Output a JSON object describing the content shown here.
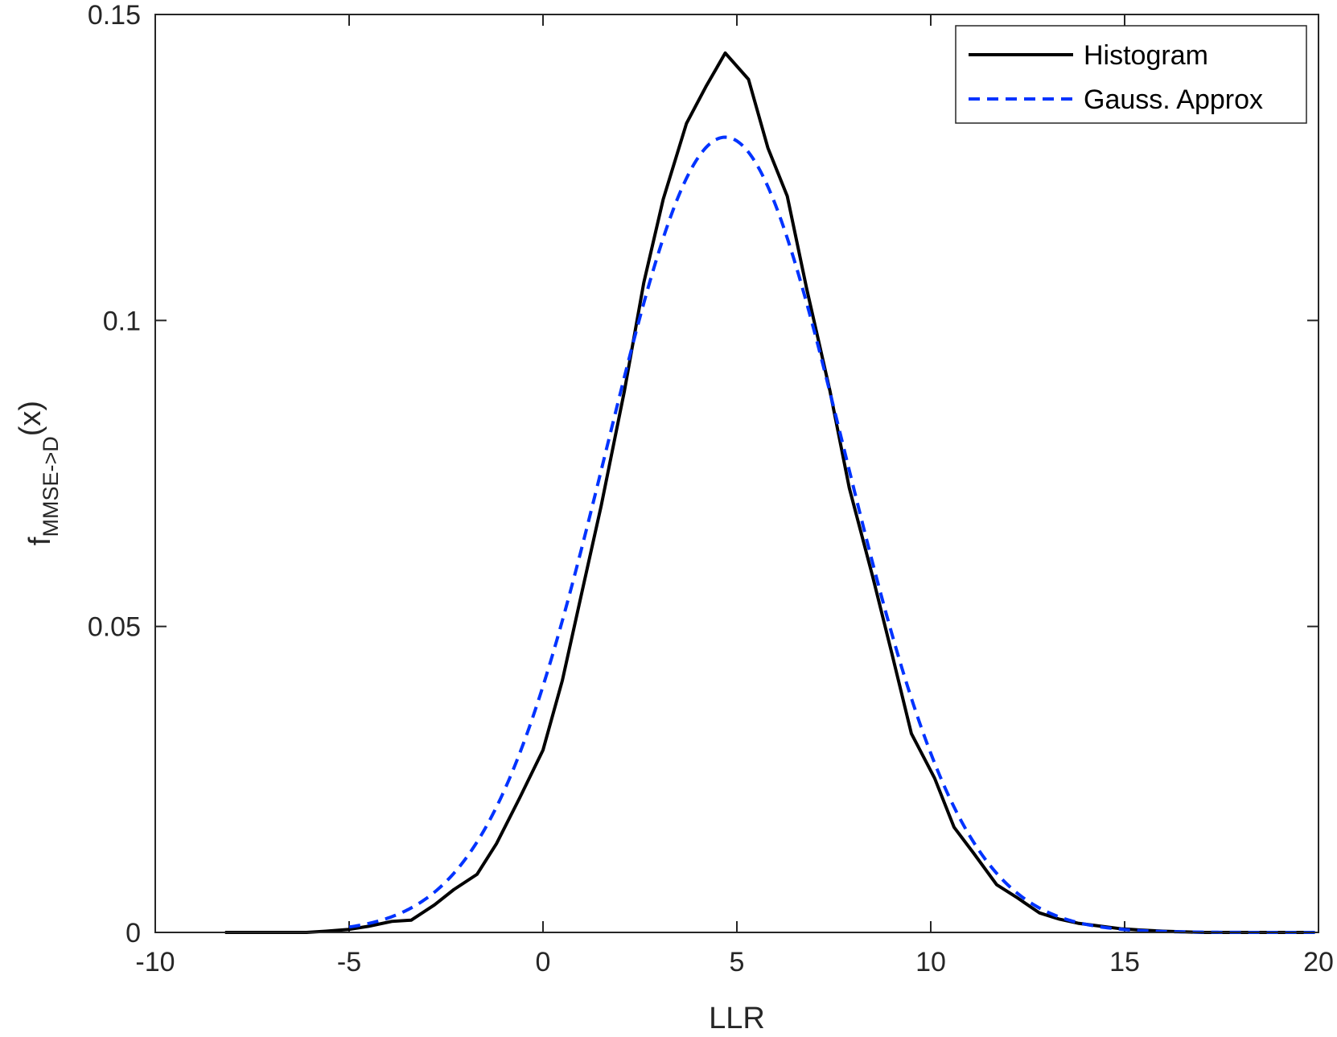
{
  "chart_data": {
    "type": "line",
    "xlabel": "LLR",
    "ylabel": {
      "base": "f",
      "subscript": "MMSE->D",
      "suffix": "(x)"
    },
    "xlim": [
      -10,
      20
    ],
    "ylim": [
      0,
      0.15
    ],
    "xticks": [
      -10,
      -5,
      0,
      5,
      10,
      15,
      20
    ],
    "xtick_labels": [
      "-10",
      "-5",
      "0",
      "5",
      "10",
      "15",
      "20"
    ],
    "yticks": [
      0,
      0.05,
      0.1,
      0.15
    ],
    "ytick_labels": [
      "0",
      "0.05",
      "0.1",
      "0.15"
    ],
    "grid": false,
    "legend_position": "top-right",
    "series": [
      {
        "name": "Histogram",
        "color": "#000000",
        "style": "solid",
        "x": [
          -8.2,
          -7.5,
          -6.8,
          -6.1,
          -5.6,
          -5.0,
          -4.5,
          -3.9,
          -3.4,
          -2.8,
          -2.3,
          -1.7,
          -1.2,
          -0.6,
          0,
          0.5,
          1.0,
          1.5,
          2.1,
          2.6,
          3.1,
          3.7,
          4.2,
          4.7,
          5.3,
          5.8,
          6.3,
          6.8,
          7.4,
          7.9,
          8.5,
          9.0,
          9.5,
          10.1,
          10.6,
          11.1,
          11.7,
          12.2,
          12.8,
          13.3,
          13.8,
          14.4,
          14.9,
          15.4,
          16.0,
          16.5,
          17.0,
          17.6,
          18.1,
          18.6,
          19.2,
          19.7
        ],
        "y": [
          0,
          0,
          0,
          0,
          0.0002,
          0.0005,
          0.001,
          0.0018,
          0.002,
          0.0045,
          0.007,
          0.0095,
          0.0145,
          0.022,
          0.0298,
          0.0412,
          0.0555,
          0.0697,
          0.0885,
          0.1062,
          0.1198,
          0.1322,
          0.1382,
          0.1437,
          0.1394,
          0.1282,
          0.1203,
          0.1052,
          0.0885,
          0.0726,
          0.0582,
          0.0455,
          0.0325,
          0.0252,
          0.0172,
          0.013,
          0.0078,
          0.0058,
          0.0032,
          0.0022,
          0.0015,
          0.001,
          0.0006,
          0.0004,
          0.0002,
          0.0001,
          0,
          0,
          0,
          0,
          0,
          0
        ]
      },
      {
        "name": "Gauss. Approx",
        "color": "#0033ff",
        "style": "dashed",
        "mean": 4.7,
        "std": 3.07,
        "x_range": [
          -5,
          20
        ]
      }
    ]
  }
}
